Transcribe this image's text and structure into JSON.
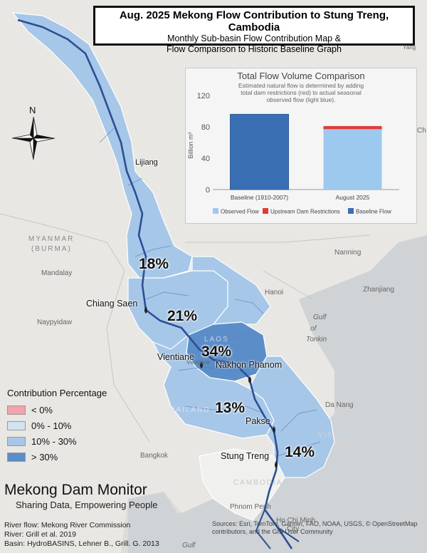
{
  "title": {
    "line1": "Aug. 2025 Mekong Flow Contribution to Stung Treng, Cambodia",
    "line2": "Monthly Sub-basin Flow Contribution Map &",
    "line3": "Flow Comparison to Historic Baseline Graph"
  },
  "compass": {
    "north_label": "N",
    "icon": "compass-rose-icon"
  },
  "percentages": {
    "upper": "18%",
    "chiang_saen": "21%",
    "laos": "34%",
    "thailand": "13%",
    "lower": "14%"
  },
  "cities": {
    "lijiang": "Lijiang",
    "chiang_saen": "Chiang Saen",
    "vientiane": "Vientiane",
    "nakhon_phanom": "Nakhon Phanom",
    "pakse": "Pakse",
    "stung_treng": "Stung Treng"
  },
  "basemap_labels": {
    "mandalay": "Mandalay",
    "naypyidaw": "Naypyidaw",
    "hanoi": "Hanoi",
    "nanning": "Nanning",
    "zhanjiang": "Zhanjiang",
    "gulf_of_tonkin_1": "Gulf",
    "gulf_of_tonkin_2": "of",
    "gulf_of_tonkin_3": "Tonkin",
    "da_nang": "Da Nang",
    "bangkok": "Bangkok",
    "phnom_penh": "Phnom Penh",
    "ho_chi_minh": "Ho Chi Minh",
    "ho_chi_minh_2": "City",
    "vientiane_small": "Vientiane",
    "gulf_bottom": "Gulf",
    "myanmar_1": "MYANMAR",
    "myanmar_2": "(BURMA)",
    "laos": "LAOS",
    "thailand": "THAILAND",
    "vietnam": "VIETNAM",
    "cambodia": "CAMBODIA",
    "edge_yang": "Yang",
    "edge_ch": "Ch"
  },
  "chart_data": {
    "type": "bar",
    "title": "Total Flow Volume Comparison",
    "subtitle_lines": [
      "Estimated natural flow is determined by adding",
      "total dam restrictions (red) to actual seasonal",
      "observed flow (light blue)."
    ],
    "ylabel": "Billion m³",
    "ylim": [
      0,
      120
    ],
    "yticks": [
      "0",
      "40",
      "80",
      "120"
    ],
    "categories": [
      "Baseline (1910-2007)",
      "August 2025"
    ],
    "series": [
      {
        "name": "Observed Flow",
        "color": "#9ec9ef",
        "values": [
          0,
          77
        ]
      },
      {
        "name": "Upstream Dam Restrictions",
        "color": "#e03a3a",
        "values": [
          0,
          4
        ]
      },
      {
        "name": "Baseline Flow",
        "color": "#3a6fb3",
        "values": [
          96,
          0
        ]
      }
    ],
    "legend_position": "bottom"
  },
  "legend": {
    "title": "Contribution Percentage",
    "items": [
      {
        "label": "< 0%",
        "color": "#f2a3ac"
      },
      {
        "label": "0% - 10%",
        "color": "#d3e2f1"
      },
      {
        "label": "10% - 30%",
        "color": "#a6c7e8"
      },
      {
        "label": "> 30%",
        "color": "#5b8ec9"
      }
    ]
  },
  "brand": {
    "name": "Mekong Dam Monitor",
    "tagline": "Sharing Data, Empowering People"
  },
  "credits": {
    "line1": "River flow: Mekong River Commission",
    "line2": "River: Grill et al. 2019",
    "line3": "Basin: HydroBASINS, Lehner B., Grill. G. 2013"
  },
  "sources": "Sources: Esri, TomTom, Garmin, FAO, NOAA, USGS, © OpenStreetMap contributors, and the GIS User Community"
}
